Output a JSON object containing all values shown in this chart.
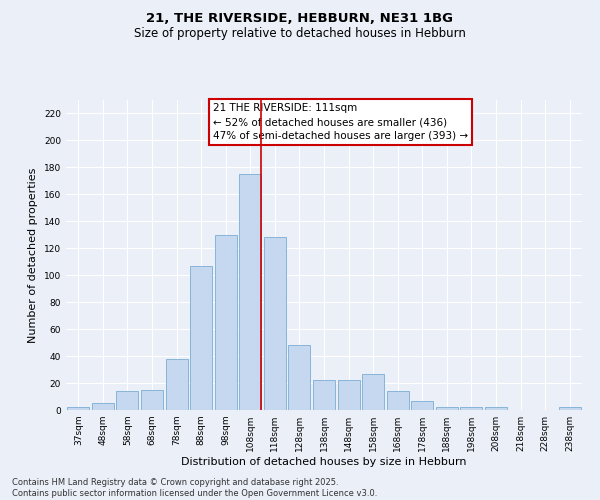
{
  "title": "21, THE RIVERSIDE, HEBBURN, NE31 1BG",
  "subtitle": "Size of property relative to detached houses in Hebburn",
  "xlabel": "Distribution of detached houses by size in Hebburn",
  "ylabel": "Number of detached properties",
  "categories": [
    "37sqm",
    "48sqm",
    "58sqm",
    "68sqm",
    "78sqm",
    "88sqm",
    "98sqm",
    "108sqm",
    "118sqm",
    "128sqm",
    "138sqm",
    "148sqm",
    "158sqm",
    "168sqm",
    "178sqm",
    "188sqm",
    "198sqm",
    "208sqm",
    "218sqm",
    "228sqm",
    "238sqm"
  ],
  "values": [
    2,
    5,
    14,
    15,
    38,
    107,
    130,
    175,
    128,
    48,
    22,
    22,
    27,
    14,
    7,
    2,
    2,
    2,
    0,
    0,
    2
  ],
  "bar_color": "#c5d8f0",
  "bar_edge_color": "#7aadd4",
  "highlight_index": 7,
  "annotation_title": "21 THE RIVERSIDE: 111sqm",
  "annotation_line1": "← 52% of detached houses are smaller (436)",
  "annotation_line2": "47% of semi-detached houses are larger (393) →",
  "annotation_box_color": "#ffffff",
  "annotation_border_color": "#cc0000",
  "vline_color": "#cc0000",
  "ylim": [
    0,
    230
  ],
  "yticks": [
    0,
    20,
    40,
    60,
    80,
    100,
    120,
    140,
    160,
    180,
    200,
    220
  ],
  "bg_color": "#eaeff8",
  "grid_color": "#ffffff",
  "footer_line1": "Contains HM Land Registry data © Crown copyright and database right 2025.",
  "footer_line2": "Contains public sector information licensed under the Open Government Licence v3.0.",
  "title_fontsize": 9.5,
  "subtitle_fontsize": 8.5,
  "xlabel_fontsize": 8,
  "ylabel_fontsize": 8,
  "tick_fontsize": 6.5,
  "annotation_fontsize": 7.5,
  "footer_fontsize": 6
}
